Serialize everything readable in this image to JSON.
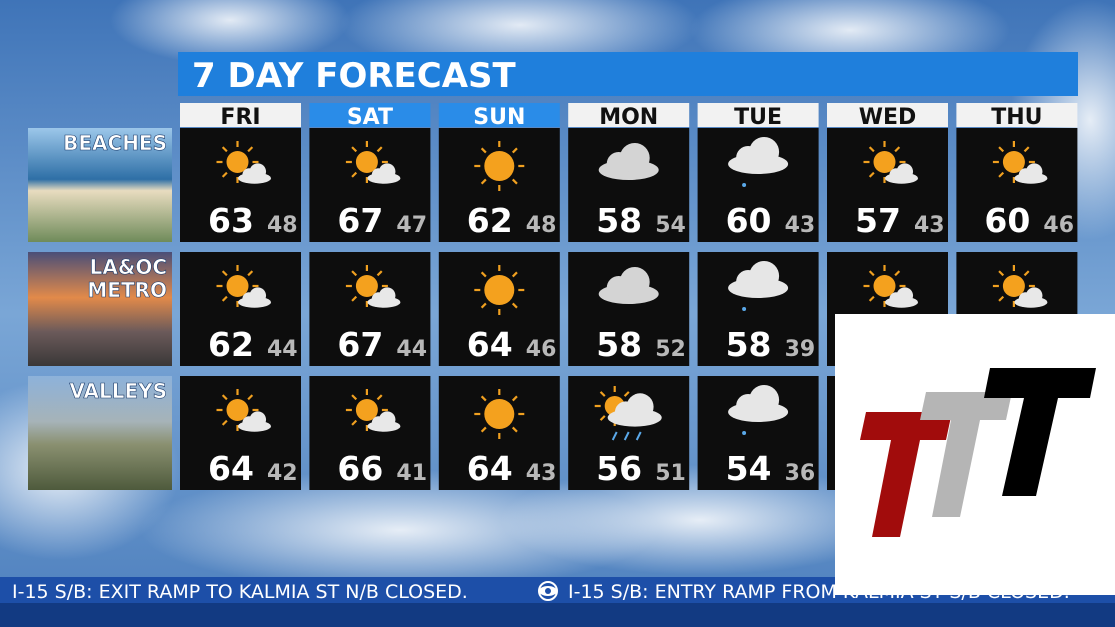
{
  "title": "7 DAY FORECAST",
  "days": [
    "FRI",
    "SAT",
    "SUN",
    "MON",
    "TUE",
    "WED",
    "THU"
  ],
  "regions": [
    {
      "label": [
        "BEACHES"
      ],
      "highs": [
        63,
        67,
        62,
        58,
        60,
        57,
        60
      ],
      "lows": [
        48,
        47,
        48,
        54,
        43,
        43,
        46
      ]
    },
    {
      "label": [
        "LA&OC",
        "METRO"
      ],
      "highs": [
        62,
        67,
        64,
        58,
        58,
        null,
        null
      ],
      "lows": [
        44,
        44,
        46,
        52,
        39,
        null,
        null
      ]
    },
    {
      "label": [
        "VALLEYS"
      ],
      "highs": [
        64,
        66,
        64,
        56,
        54,
        null,
        null
      ],
      "lows": [
        42,
        41,
        43,
        51,
        36,
        null,
        null
      ]
    }
  ],
  "ticker": [
    "I-15 S/B: EXIT RAMP TO KALMIA ST N/B CLOSED.",
    "I-15 S/B: ENTRY RAMP FROM KALMIA ST S/B CLOSED."
  ]
}
